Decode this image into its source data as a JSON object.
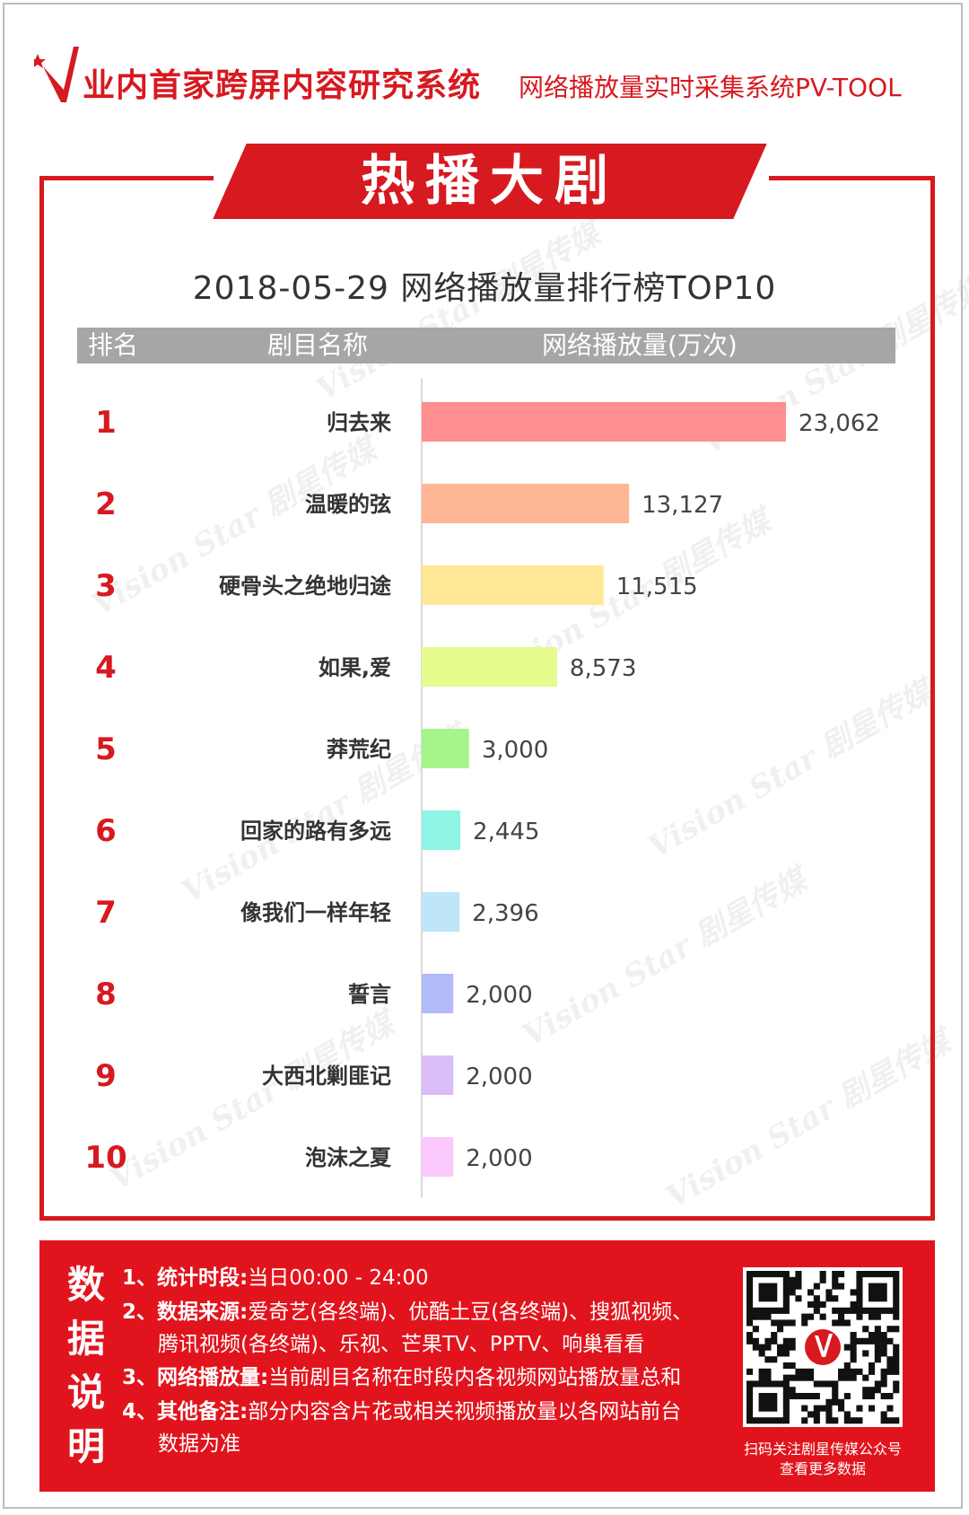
{
  "header": {
    "title": "业内首家跨屏内容研究系统",
    "subtitle": "网络播放量实时采集系统PV-TOOL"
  },
  "banner": {
    "text": "热播大剧"
  },
  "chart_title": "2018-05-29 网络播放量排行榜TOP10",
  "table_header": {
    "rank": "排名",
    "name": "剧目名称",
    "value": "网络播放量(万次)"
  },
  "watermark": "Vision Star 剧星传媒",
  "colors": {
    "accent": "#d71920",
    "footer_bg": "#e1141d"
  },
  "chart_data": {
    "type": "bar",
    "orientation": "horizontal",
    "title": "2018-05-29 网络播放量排行榜TOP10",
    "xlabel": "",
    "ylabel": "",
    "value_unit": "万次",
    "grid": false,
    "legend": "none",
    "ranks": [
      "1",
      "2",
      "3",
      "4",
      "5",
      "6",
      "7",
      "8",
      "9",
      "10"
    ],
    "categories": [
      "归去来",
      "温暖的弦",
      "硬骨头之绝地归途",
      "如果,爱",
      "莽荒纪",
      "回家的路有多远",
      "像我们一样年轻",
      "誓言",
      "大西北剿匪记",
      "泡沫之夏"
    ],
    "values": [
      23062,
      13127,
      11515,
      8573,
      3000,
      2445,
      2396,
      2000,
      2000,
      2000
    ],
    "value_labels": [
      "23,062",
      "13,127",
      "11,515",
      "8,573",
      "3,000",
      "2,445",
      "2,396",
      "2,000",
      "2,000",
      "2,000"
    ],
    "bar_colors": [
      "#ff8f8f",
      "#ffb695",
      "#ffe795",
      "#e5fb8e",
      "#a6f58a",
      "#8ff6e6",
      "#bfe5f8",
      "#b2bbf7",
      "#d9bdf7",
      "#fbc9fb"
    ]
  },
  "footer": {
    "heading": "数据说明",
    "notes": [
      {
        "label": "1、统计时段:",
        "text": "当日00:00 - 24:00"
      },
      {
        "label": "2、数据来源:",
        "text": "爱奇艺(各终端)、优酷土豆(各终端)、搜狐视频、",
        "text2": "腾讯视频(各终端)、乐视、芒果TV、PPTV、响巢看看"
      },
      {
        "label": "3、网络播放量:",
        "text": "当前剧目名称在时段内各视频网站播放量总和"
      },
      {
        "label": "4、其他备注:",
        "text": "部分内容含片花或相关视频播放量以各网站前台",
        "text2": "数据为准"
      }
    ],
    "qr_caption_line1": "扫码关注剧星传媒公众号",
    "qr_caption_line2": "查看更多数据"
  }
}
